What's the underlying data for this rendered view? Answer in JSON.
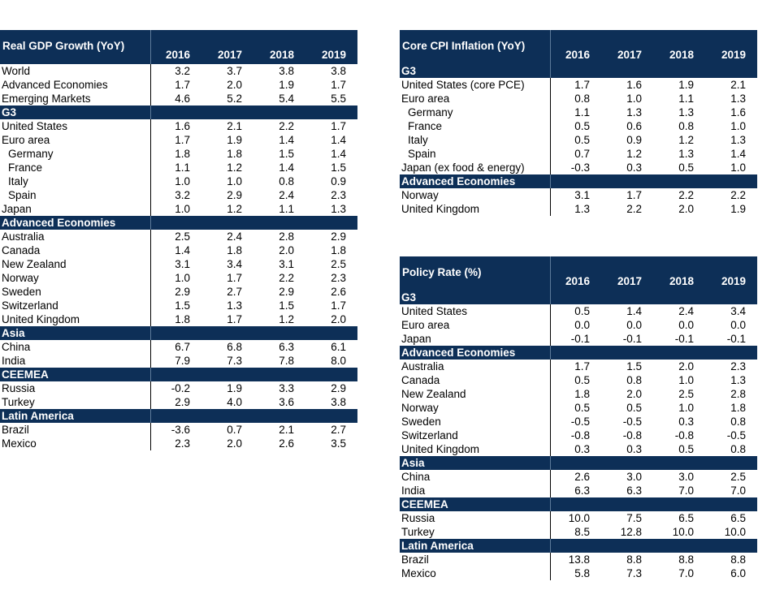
{
  "gdp": {
    "title": "Real GDP Growth (YoY)",
    "years": [
      "2016",
      "2017",
      "2018",
      "2019"
    ],
    "rows": [
      {
        "label": "World",
        "values": [
          "3.2",
          "3.7",
          "3.8",
          "3.8"
        ]
      },
      {
        "label": "Advanced Economies",
        "values": [
          "1.7",
          "2.0",
          "1.9",
          "1.7"
        ]
      },
      {
        "label": "Emerging Markets",
        "values": [
          "4.6",
          "5.2",
          "5.4",
          "5.5"
        ]
      },
      {
        "section": "G3"
      },
      {
        "label": "United States",
        "values": [
          "1.6",
          "2.1",
          "2.2",
          "1.7"
        ]
      },
      {
        "label": "Euro area",
        "values": [
          "1.7",
          "1.9",
          "1.4",
          "1.4"
        ]
      },
      {
        "label": "Germany",
        "indent": true,
        "values": [
          "1.8",
          "1.8",
          "1.5",
          "1.4"
        ]
      },
      {
        "label": "France",
        "indent": true,
        "values": [
          "1.1",
          "1.2",
          "1.4",
          "1.5"
        ]
      },
      {
        "label": "Italy",
        "indent": true,
        "values": [
          "1.0",
          "1.0",
          "0.8",
          "0.9"
        ]
      },
      {
        "label": "Spain",
        "indent": true,
        "values": [
          "3.2",
          "2.9",
          "2.4",
          "2.3"
        ]
      },
      {
        "label": "Japan",
        "values": [
          "1.0",
          "1.2",
          "1.1",
          "1.3"
        ]
      },
      {
        "section": "Advanced Economies"
      },
      {
        "label": "Australia",
        "values": [
          "2.5",
          "2.4",
          "2.8",
          "2.9"
        ]
      },
      {
        "label": "Canada",
        "values": [
          "1.4",
          "1.8",
          "2.0",
          "1.8"
        ]
      },
      {
        "label": "New Zealand",
        "values": [
          "3.1",
          "3.4",
          "3.1",
          "2.5"
        ]
      },
      {
        "label": "Norway",
        "values": [
          "1.0",
          "1.7",
          "2.2",
          "2.3"
        ]
      },
      {
        "label": "Sweden",
        "values": [
          "2.9",
          "2.7",
          "2.9",
          "2.6"
        ]
      },
      {
        "label": "Switzerland",
        "values": [
          "1.5",
          "1.3",
          "1.5",
          "1.7"
        ]
      },
      {
        "label": "United Kingdom",
        "values": [
          "1.8",
          "1.7",
          "1.2",
          "2.0"
        ]
      },
      {
        "section": "Asia"
      },
      {
        "label": "China",
        "values": [
          "6.7",
          "6.8",
          "6.3",
          "6.1"
        ]
      },
      {
        "label": "India",
        "values": [
          "7.9",
          "7.3",
          "7.8",
          "8.0"
        ]
      },
      {
        "section": "CEEMEA"
      },
      {
        "label": "Russia",
        "values": [
          "-0.2",
          "1.9",
          "3.3",
          "2.9"
        ]
      },
      {
        "label": "Turkey",
        "values": [
          "2.9",
          "4.0",
          "3.6",
          "3.8"
        ]
      },
      {
        "section": "Latin America"
      },
      {
        "label": "Brazil",
        "values": [
          "-3.6",
          "0.7",
          "2.1",
          "2.7"
        ]
      },
      {
        "label": "Mexico",
        "values": [
          "2.3",
          "2.0",
          "2.6",
          "3.5"
        ]
      }
    ]
  },
  "cpi": {
    "title": "Core CPI Inflation (YoY)",
    "years": [
      "2016",
      "2017",
      "2018",
      "2019"
    ],
    "rows": [
      {
        "section": "G3"
      },
      {
        "label": "United States (core PCE)",
        "values": [
          "1.7",
          "1.6",
          "1.9",
          "2.1"
        ]
      },
      {
        "label": "Euro area",
        "values": [
          "0.8",
          "1.0",
          "1.1",
          "1.3"
        ]
      },
      {
        "label": "Germany",
        "indent": true,
        "values": [
          "1.1",
          "1.3",
          "1.3",
          "1.6"
        ]
      },
      {
        "label": "France",
        "indent": true,
        "values": [
          "0.5",
          "0.6",
          "0.8",
          "1.0"
        ]
      },
      {
        "label": "Italy",
        "indent": true,
        "values": [
          "0.5",
          "0.9",
          "1.2",
          "1.3"
        ]
      },
      {
        "label": "Spain",
        "indent": true,
        "values": [
          "0.7",
          "1.2",
          "1.3",
          "1.4"
        ]
      },
      {
        "label": "Japan (ex food & energy)",
        "values": [
          "-0.3",
          "0.3",
          "0.5",
          "1.0"
        ]
      },
      {
        "section": "Advanced Economies"
      },
      {
        "label": "Norway",
        "values": [
          "3.1",
          "1.7",
          "2.2",
          "2.2"
        ]
      },
      {
        "label": "United Kingdom",
        "values": [
          "1.3",
          "2.2",
          "2.0",
          "1.9"
        ]
      }
    ]
  },
  "policy": {
    "title": "Policy Rate (%)",
    "years": [
      "2016",
      "2017",
      "2018",
      "2019"
    ],
    "rows": [
      {
        "section": "G3"
      },
      {
        "label": "United States",
        "values": [
          "0.5",
          "1.4",
          "2.4",
          "3.4"
        ]
      },
      {
        "label": "Euro area",
        "values": [
          "0.0",
          "0.0",
          "0.0",
          "0.0"
        ]
      },
      {
        "label": "Japan",
        "values": [
          "-0.1",
          "-0.1",
          "-0.1",
          "-0.1"
        ]
      },
      {
        "section": "Advanced Economies"
      },
      {
        "label": "Australia",
        "values": [
          "1.7",
          "1.5",
          "2.0",
          "2.3"
        ]
      },
      {
        "label": "Canada",
        "values": [
          "0.5",
          "0.8",
          "1.0",
          "1.3"
        ]
      },
      {
        "label": "New Zealand",
        "values": [
          "1.8",
          "2.0",
          "2.5",
          "2.8"
        ]
      },
      {
        "label": "Norway",
        "values": [
          "0.5",
          "0.5",
          "1.0",
          "1.8"
        ]
      },
      {
        "label": "Sweden",
        "values": [
          "-0.5",
          "-0.5",
          "0.3",
          "0.8"
        ]
      },
      {
        "label": "Switzerland",
        "values": [
          "-0.8",
          "-0.8",
          "-0.8",
          "-0.5"
        ]
      },
      {
        "label": "United Kingdom",
        "values": [
          "0.3",
          "0.3",
          "0.5",
          "0.8"
        ]
      },
      {
        "section": "Asia"
      },
      {
        "label": "China",
        "values": [
          "2.6",
          "3.0",
          "3.0",
          "2.5"
        ]
      },
      {
        "label": "India",
        "values": [
          "6.3",
          "6.3",
          "7.0",
          "7.0"
        ]
      },
      {
        "section": "CEEMEA"
      },
      {
        "label": "Russia",
        "values": [
          "10.0",
          "7.5",
          "6.5",
          "6.5"
        ]
      },
      {
        "label": "Turkey",
        "values": [
          "8.5",
          "12.8",
          "10.0",
          "10.0"
        ]
      },
      {
        "section": "Latin America"
      },
      {
        "label": "Brazil",
        "values": [
          "13.8",
          "8.8",
          "8.8",
          "8.8"
        ]
      },
      {
        "label": "Mexico",
        "values": [
          "5.8",
          "7.3",
          "7.0",
          "6.0"
        ]
      }
    ]
  }
}
